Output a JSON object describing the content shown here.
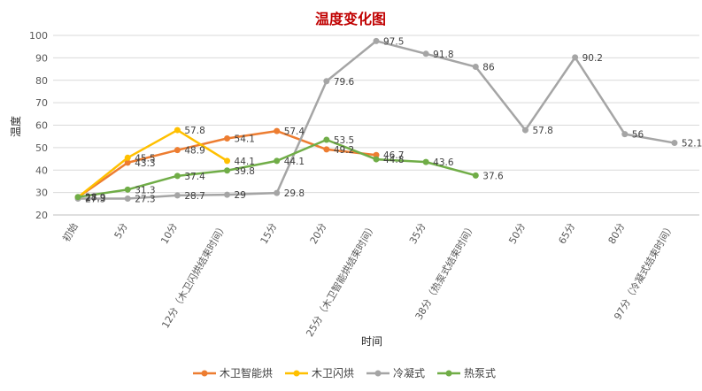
{
  "chart_data": {
    "type": "line",
    "title": "温度变化图",
    "xlabel": "时间",
    "ylabel": "温度",
    "ylim": [
      20,
      100
    ],
    "yticks": [
      20,
      30,
      40,
      50,
      60,
      70,
      80,
      90,
      100
    ],
    "grid": true,
    "legend": "bottom",
    "categories": [
      "初始",
      "5分",
      "10分",
      "12分（木卫闪烘结束时间）",
      "15分",
      "20分",
      "25分（木卫智能烘结束时间）",
      "35分",
      "38分（热泵式结束时间）",
      "50分",
      "65分",
      "80分",
      "97分（冷凝式结束时间）"
    ],
    "series": [
      {
        "name": "木卫智能烘",
        "color": "#ED7D31",
        "values": [
          27.9,
          43.3,
          48.9,
          54.1,
          57.4,
          49.2,
          46.7,
          null,
          null,
          null,
          null,
          null,
          null
        ]
      },
      {
        "name": "木卫闪烘",
        "color": "#FFC000",
        "values": [
          27.9,
          45.5,
          57.8,
          44.1,
          null,
          null,
          null,
          null,
          null,
          null,
          null,
          null,
          null
        ]
      },
      {
        "name": "冷凝式",
        "color": "#A5A5A5",
        "values": [
          27.3,
          27.3,
          28.7,
          29,
          29.8,
          79.6,
          97.5,
          91.8,
          86,
          57.8,
          90.2,
          56,
          52.1
        ]
      },
      {
        "name": "热泵式",
        "color": "#70AD47",
        "values": [
          28,
          31.3,
          37.4,
          39.8,
          44.1,
          53.5,
          44.8,
          43.6,
          37.6,
          null,
          null,
          null,
          null
        ]
      }
    ]
  }
}
